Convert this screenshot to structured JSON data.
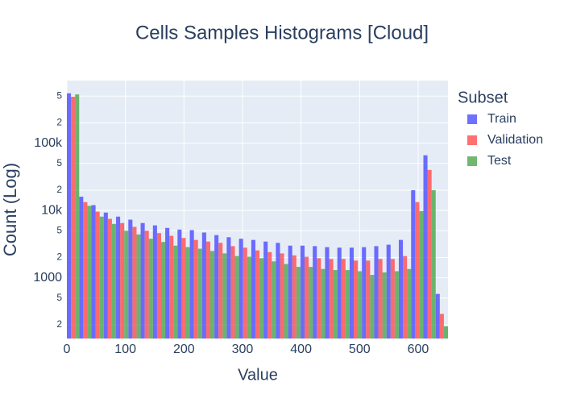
{
  "chart_data": {
    "type": "histogram",
    "title": "Cells Samples Histograms [Cloud]",
    "xlabel": "Value",
    "ylabel": "Count (Log)",
    "legend_title": "Subset",
    "legend": "right",
    "log_y": true,
    "grid": true,
    "bins": [
      0,
      21,
      42,
      63,
      84,
      105,
      126,
      147,
      168,
      189,
      210,
      231,
      252,
      273,
      294,
      315,
      336,
      357,
      378,
      399,
      420,
      441,
      462,
      483,
      504,
      525,
      546,
      567,
      588,
      609,
      630,
      651
    ],
    "series": [
      {
        "name": "Train",
        "color": "#4040ff",
        "values": [
          550000,
          16000,
          12000,
          9300,
          8100,
          7300,
          6500,
          6000,
          5500,
          5200,
          5100,
          4700,
          4300,
          4000,
          3800,
          3650,
          3450,
          3300,
          3000,
          3000,
          2950,
          2850,
          2800,
          2800,
          2850,
          2950,
          3100,
          3650,
          20000,
          66000,
          575
        ]
      },
      {
        "name": "Validation",
        "color": "#ff4040",
        "values": [
          490000,
          13300,
          9600,
          7500,
          6500,
          5700,
          5000,
          4600,
          4200,
          3900,
          3650,
          3450,
          3300,
          2950,
          2800,
          2550,
          2400,
          2300,
          2150,
          2050,
          1950,
          1900,
          1900,
          1800,
          1800,
          1900,
          1900,
          2100,
          13300,
          40000,
          290
        ]
      },
      {
        "name": "Test",
        "color": "#40a040",
        "values": [
          530000,
          11700,
          8100,
          6300,
          5000,
          4400,
          3800,
          3400,
          3000,
          2850,
          2700,
          2500,
          2300,
          2100,
          2050,
          1950,
          1750,
          1600,
          1450,
          1450,
          1350,
          1300,
          1300,
          1250,
          1100,
          1200,
          1250,
          1350,
          9800,
          20000,
          190
        ]
      }
    ],
    "xlim": [
      0,
      651
    ],
    "xticks": [
      0,
      100,
      200,
      300,
      400,
      500,
      600
    ],
    "ylim": [
      125,
      850000
    ],
    "yticks": [
      {
        "value": 200,
        "label": "2"
      },
      {
        "value": 500,
        "label": "5"
      },
      1000,
      {
        "value": 2000,
        "label": "2"
      },
      {
        "value": 5000,
        "label": "5"
      },
      {
        "value": 10000,
        "label": "10k"
      },
      {
        "value": 20000,
        "label": "2"
      },
      {
        "value": 50000,
        "label": "5"
      },
      {
        "value": 100000,
        "label": "100k"
      },
      {
        "value": 200000,
        "label": "2"
      },
      {
        "value": 500000,
        "label": "5"
      }
    ]
  }
}
